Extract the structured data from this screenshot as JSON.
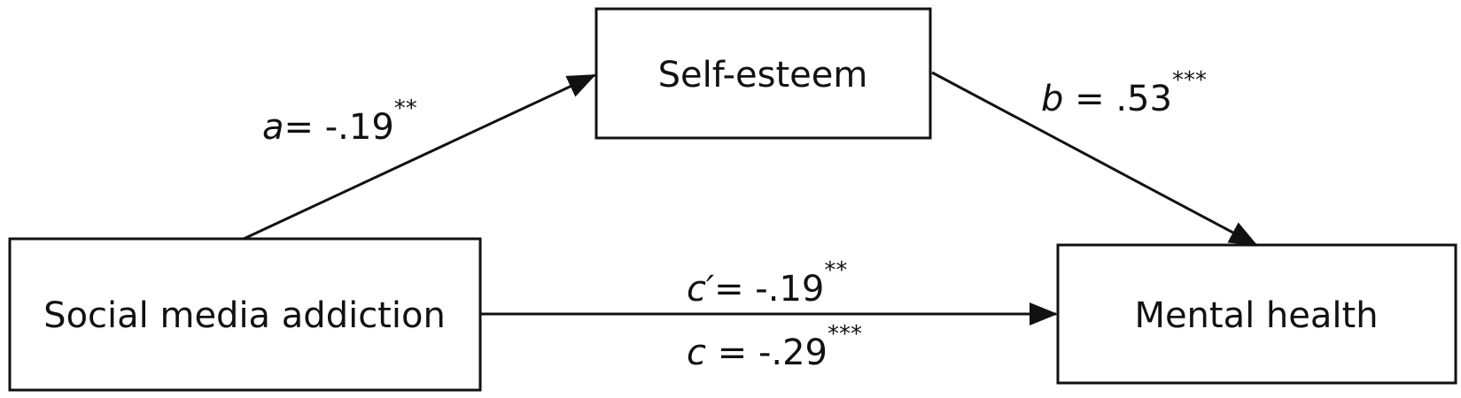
{
  "nodes": {
    "mediator": "Self-esteem",
    "predictor": "Social media addiction",
    "outcome": "Mental health"
  },
  "paths": {
    "a": {
      "symbol": "a",
      "value": "= -.19",
      "stars": "**"
    },
    "b": {
      "symbol": "b",
      "value": " = .53",
      "stars": "***"
    },
    "c_prime": {
      "symbol": "c′",
      "value": "= -.19",
      "stars": "**"
    },
    "c": {
      "symbol": "c",
      "value": " = -.29",
      "stars": "***"
    }
  }
}
